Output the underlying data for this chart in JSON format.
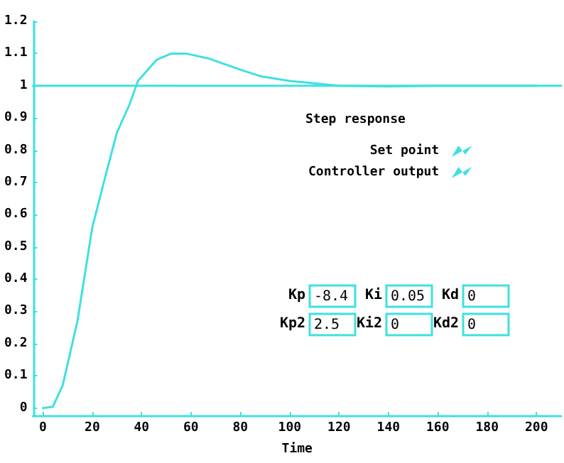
{
  "chart_data": {
    "type": "line",
    "xlabel": "Time",
    "legend_title": "Step response",
    "legend": "right",
    "grid": false,
    "marker": "none",
    "line_style": "solid",
    "xlim": [
      -4,
      210
    ],
    "xticks": [
      0,
      20,
      40,
      60,
      80,
      100,
      120,
      140,
      160,
      180,
      200
    ],
    "ylim": [
      -0.025,
      1.2
    ],
    "yticks": [
      {
        "value": 0,
        "label": "0"
      },
      {
        "value": 0.1,
        "label": "0.1"
      },
      {
        "value": 0.2,
        "label": "0.2"
      },
      {
        "value": 0.3,
        "label": "0.3"
      },
      {
        "value": 0.4,
        "label": "0.4"
      },
      {
        "value": 0.5,
        "label": "0.5"
      },
      {
        "value": 0.6,
        "label": "0.6"
      },
      {
        "value": 0.7,
        "label": "0.7"
      },
      {
        "value": 0.8,
        "label": "0.8"
      },
      {
        "value": 0.9,
        "label": "0.9"
      },
      {
        "value": 1,
        "label": "1"
      },
      {
        "value": 1.1,
        "label": "1.1"
      },
      {
        "value": 1.2,
        "label": "1.2"
      }
    ],
    "series": [
      {
        "name": "Set point",
        "color": "#40e0e0",
        "x": [
          -4,
          210
        ],
        "values": [
          1,
          1
        ]
      },
      {
        "name": "Controller output",
        "color": "#40e0e0",
        "x": [
          0,
          4,
          8,
          14,
          20,
          25,
          30,
          35,
          38.5,
          46,
          52,
          58,
          67,
          80,
          88,
          100,
          120,
          140,
          160,
          200
        ],
        "values": [
          0,
          0.004,
          0.07,
          0.27,
          0.56,
          0.71,
          0.855,
          0.94,
          1.015,
          1.08,
          1.1,
          1.1,
          1.085,
          1.05,
          1.03,
          1.015,
          1,
          0.998,
          1,
          1
        ]
      }
    ],
    "annotations": [
      "Kp",
      "-8.4",
      "Ki",
      "0.05",
      "Kd",
      "0",
      "Kp2",
      "2.5",
      "Ki2",
      "0",
      "Kd2",
      "0"
    ]
  }
}
